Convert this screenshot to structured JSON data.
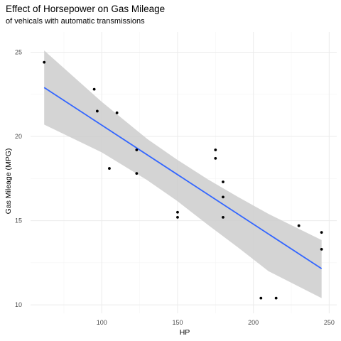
{
  "chart_data": {
    "type": "scatter",
    "title": "Effect of Horsepower on Gas Mileage",
    "subtitle": "of vehicals with automatic transmissions",
    "xlabel": "HP",
    "ylabel": "Gas Mileage (MPG)",
    "xlim": [
      53,
      255
    ],
    "ylim": [
      9.5,
      26.2
    ],
    "x_ticks": [
      100,
      150,
      200,
      250
    ],
    "y_ticks": [
      10,
      15,
      20,
      25
    ],
    "grid": true,
    "points": [
      {
        "x": 62,
        "y": 24.4
      },
      {
        "x": 95,
        "y": 22.8
      },
      {
        "x": 97,
        "y": 21.5
      },
      {
        "x": 105,
        "y": 18.1
      },
      {
        "x": 110,
        "y": 21.4
      },
      {
        "x": 123,
        "y": 19.2
      },
      {
        "x": 123,
        "y": 17.8
      },
      {
        "x": 150,
        "y": 15.5
      },
      {
        "x": 150,
        "y": 15.2
      },
      {
        "x": 175,
        "y": 19.2
      },
      {
        "x": 175,
        "y": 18.7
      },
      {
        "x": 180,
        "y": 17.3
      },
      {
        "x": 180,
        "y": 16.4
      },
      {
        "x": 180,
        "y": 15.2
      },
      {
        "x": 205,
        "y": 10.4
      },
      {
        "x": 215,
        "y": 10.4
      },
      {
        "x": 230,
        "y": 14.7
      },
      {
        "x": 245,
        "y": 14.3
      },
      {
        "x": 245,
        "y": 13.3
      }
    ],
    "fit": {
      "method": "linear",
      "line": [
        {
          "x": 62,
          "y": 22.9
        },
        {
          "x": 245,
          "y": 12.15
        }
      ],
      "ci_upper": [
        {
          "x": 62,
          "y": 25.1
        },
        {
          "x": 100,
          "y": 22.05
        },
        {
          "x": 130,
          "y": 19.85
        },
        {
          "x": 150,
          "y": 18.6
        },
        {
          "x": 170,
          "y": 17.45
        },
        {
          "x": 190,
          "y": 16.4
        },
        {
          "x": 210,
          "y": 15.4
        },
        {
          "x": 245,
          "y": 13.85
        }
      ],
      "ci_lower": [
        {
          "x": 62,
          "y": 20.7
        },
        {
          "x": 100,
          "y": 19.05
        },
        {
          "x": 130,
          "y": 17.4
        },
        {
          "x": 150,
          "y": 16.15
        },
        {
          "x": 170,
          "y": 14.75
        },
        {
          "x": 190,
          "y": 13.4
        },
        {
          "x": 210,
          "y": 12.0
        },
        {
          "x": 245,
          "y": 10.4
        }
      ]
    },
    "colors": {
      "points": "#000000",
      "fit_line": "#3366ff",
      "ci_band": "#cccccc",
      "grid_major": "#ebebeb",
      "grid_minor": "#f5f5f5"
    }
  }
}
